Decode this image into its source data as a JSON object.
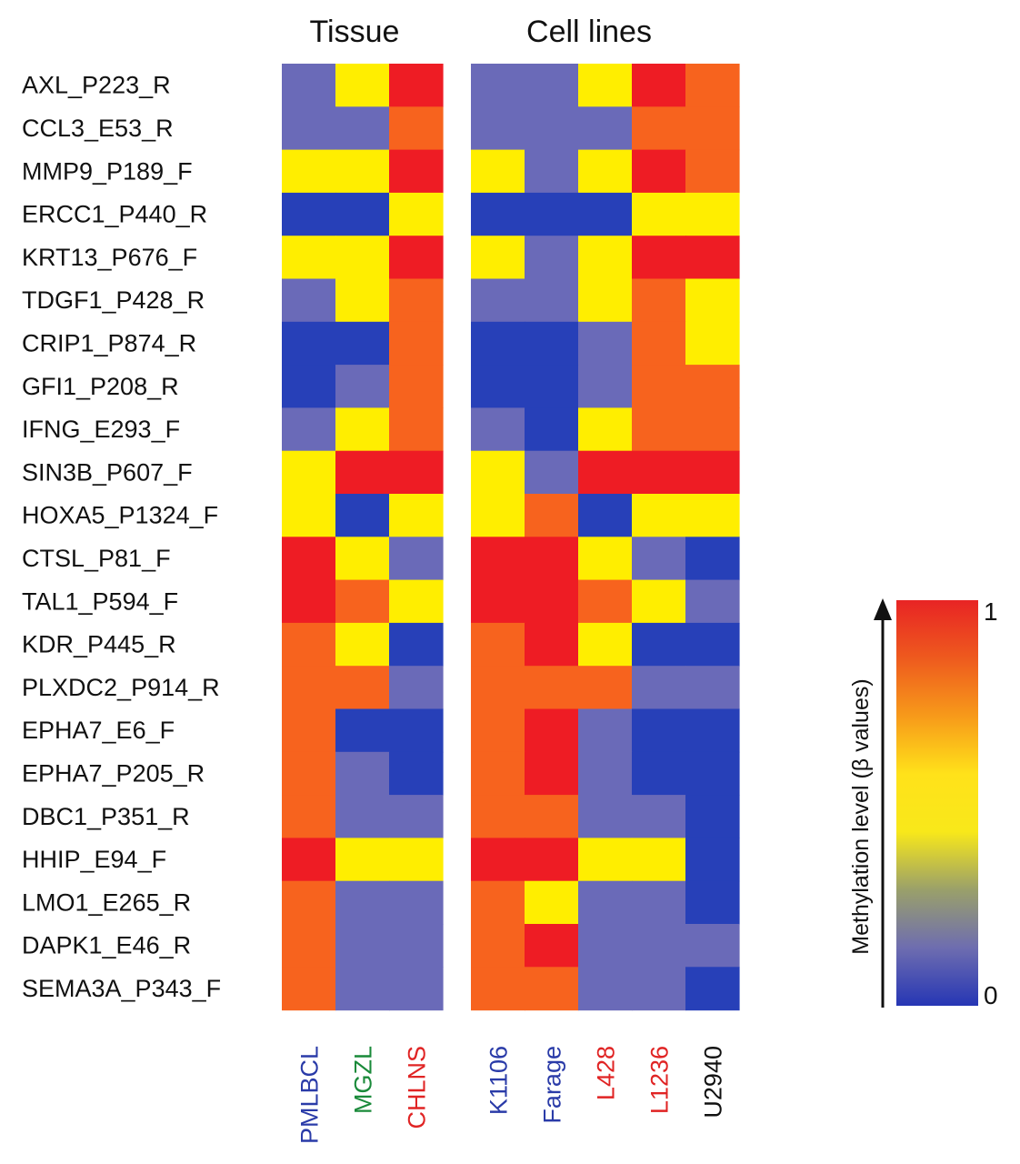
{
  "chart_data": {
    "type": "heatmap",
    "groups": [
      {
        "title": "Tissue",
        "columns": [
          "PMLBCL",
          "MGZL",
          "CHLNS"
        ]
      },
      {
        "title": "Cell lines",
        "columns": [
          "K1106",
          "Farage",
          "L428",
          "L1236",
          "U2940"
        ]
      }
    ],
    "rows": [
      "AXL_P223_R",
      "CCL3_E53_R",
      "MMP9_P189_F",
      "ERCC1_P440_R",
      "KRT13_P676_F",
      "TDGF1_P428_R",
      "CRIP1_P874_R",
      "GFI1_P208_R",
      "IFNG_E293_F",
      "SIN3B_P607_F",
      "HOXA5_P1324_F",
      "CTSL_P81_F",
      "TAL1_P594_F",
      "KDR_P445_R",
      "PLXDC2_P914_R",
      "EPHA7_E6_F",
      "EPHA7_P205_R",
      "DBC1_P351_R",
      "HHIP_E94_F",
      "LMO1_E265_R",
      "DAPK1_E46_R",
      "SEMA3A_P343_F"
    ],
    "column_label_colors": {
      "PMLBCL": "#2a3ba8",
      "MGZL": "#1a8a3a",
      "CHLNS": "#e02424",
      "K1106": "#2a3ba8",
      "Farage": "#2a3ba8",
      "L428": "#e02424",
      "L1236": "#e02424",
      "U2940": "#111111"
    },
    "values": [
      [
        0.3,
        0.6,
        1.0,
        0.3,
        0.3,
        0.6,
        1.0,
        0.85
      ],
      [
        0.3,
        0.3,
        0.85,
        0.3,
        0.3,
        0.3,
        0.85,
        0.85
      ],
      [
        0.6,
        0.6,
        1.0,
        0.6,
        0.3,
        0.6,
        1.0,
        0.85
      ],
      [
        0.0,
        0.0,
        0.6,
        0.0,
        0.0,
        0.0,
        0.6,
        0.6
      ],
      [
        0.6,
        0.6,
        1.0,
        0.6,
        0.3,
        0.6,
        1.0,
        1.0
      ],
      [
        0.3,
        0.6,
        0.85,
        0.3,
        0.3,
        0.6,
        0.85,
        0.6
      ],
      [
        0.0,
        0.0,
        0.85,
        0.0,
        0.0,
        0.3,
        0.85,
        0.6
      ],
      [
        0.0,
        0.3,
        0.85,
        0.0,
        0.0,
        0.3,
        0.85,
        0.85
      ],
      [
        0.3,
        0.6,
        0.85,
        0.3,
        0.0,
        0.6,
        0.85,
        0.85
      ],
      [
        0.6,
        1.0,
        1.0,
        0.6,
        0.3,
        1.0,
        1.0,
        1.0
      ],
      [
        0.6,
        0.0,
        0.6,
        0.6,
        0.85,
        0.0,
        0.6,
        0.6
      ],
      [
        1.0,
        0.6,
        0.3,
        1.0,
        1.0,
        0.6,
        0.3,
        0.0
      ],
      [
        1.0,
        0.85,
        0.6,
        1.0,
        1.0,
        0.85,
        0.6,
        0.3
      ],
      [
        0.85,
        0.6,
        0.0,
        0.85,
        1.0,
        0.6,
        0.0,
        0.0
      ],
      [
        0.85,
        0.85,
        0.3,
        0.85,
        0.85,
        0.85,
        0.3,
        0.3
      ],
      [
        0.85,
        0.0,
        0.0,
        0.85,
        1.0,
        0.3,
        0.0,
        0.0
      ],
      [
        0.85,
        0.3,
        0.0,
        0.85,
        1.0,
        0.3,
        0.0,
        0.0
      ],
      [
        0.85,
        0.3,
        0.3,
        0.85,
        0.85,
        0.3,
        0.3,
        0.0
      ],
      [
        1.0,
        0.6,
        0.6,
        1.0,
        1.0,
        0.6,
        0.6,
        0.0
      ],
      [
        0.85,
        0.3,
        0.3,
        0.85,
        0.6,
        0.3,
        0.3,
        0.0
      ],
      [
        0.85,
        0.3,
        0.3,
        0.85,
        1.0,
        0.3,
        0.3,
        0.3
      ],
      [
        0.85,
        0.3,
        0.3,
        0.85,
        0.85,
        0.3,
        0.3,
        0.0
      ]
    ],
    "colorbar": {
      "title": "Methylation level (β values)",
      "min_label": "0",
      "max_label": "1",
      "range": [
        0,
        1
      ],
      "stops": [
        "#2636b4",
        "#6e6db0",
        "#9aa06a",
        "#f8e81a",
        "#ffe21a",
        "#f79a1a",
        "#ee5a1e",
        "#e82424"
      ]
    },
    "palette": {
      "0.0": "#2740b8",
      "0.3": "#6a6ab8",
      "0.6": "#ffee00",
      "0.85": "#f7631e",
      "1.0": "#ee1c24"
    }
  }
}
